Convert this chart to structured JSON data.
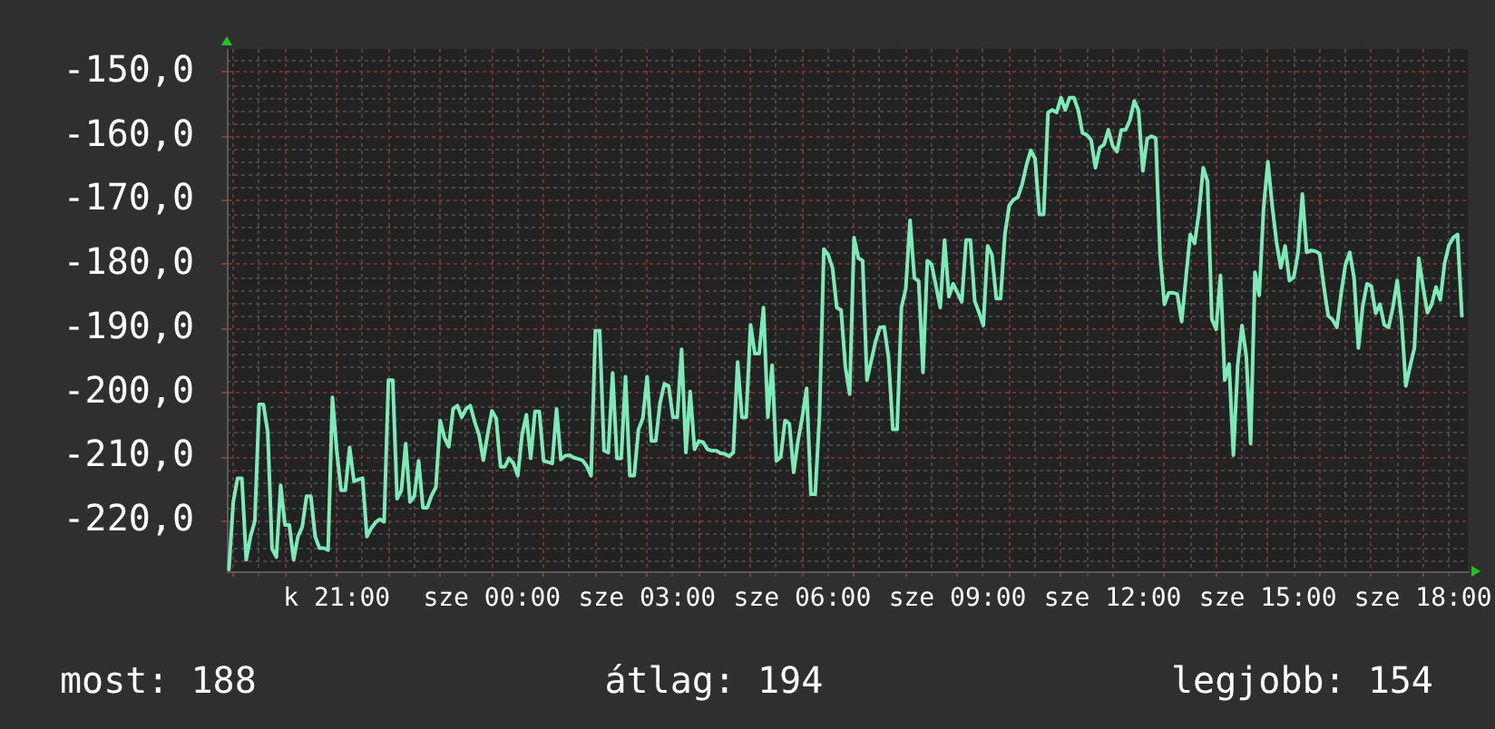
{
  "chart_data": {
    "type": "line",
    "categories": [
      null,
      null,
      null,
      null,
      null,
      null,
      null,
      null,
      null,
      null,
      null,
      null,
      null,
      null,
      null,
      null,
      null,
      null,
      null,
      null,
      null,
      null,
      null,
      null,
      null,
      "k 21:00",
      null,
      null,
      null,
      null,
      null,
      null,
      null,
      null,
      null,
      null,
      null,
      null,
      null,
      null,
      null,
      null,
      null,
      null,
      null,
      null,
      null,
      null,
      null,
      null,
      null,
      null,
      null,
      null,
      null,
      null,
      null,
      null,
      null,
      null,
      null,
      "sze 00:00",
      null,
      null,
      null,
      null,
      null,
      null,
      null,
      null,
      null,
      null,
      null,
      null,
      null,
      null,
      null,
      null,
      null,
      null,
      null,
      null,
      null,
      null,
      null,
      null,
      null,
      null,
      null,
      null,
      null,
      null,
      null,
      null,
      null,
      null,
      null,
      "sze 03:00",
      null,
      null,
      null,
      null,
      null,
      null,
      null,
      null,
      null,
      null,
      null,
      null,
      null,
      null,
      null,
      null,
      null,
      null,
      null,
      null,
      null,
      null,
      null,
      null,
      null,
      null,
      null,
      null,
      null,
      null,
      null,
      null,
      null,
      null,
      null,
      "sze 06:00",
      null,
      null,
      null,
      null,
      null,
      null,
      null,
      null,
      null,
      null,
      null,
      null,
      null,
      null,
      null,
      null,
      null,
      null,
      null,
      null,
      null,
      null,
      null,
      null,
      null,
      null,
      null,
      null,
      null,
      null,
      null,
      null,
      null,
      null,
      null,
      "sze 09:00",
      null,
      null,
      null,
      null,
      null,
      null,
      null,
      null,
      null,
      null,
      null,
      null,
      null,
      null,
      null,
      null,
      null,
      null,
      null,
      null,
      null,
      null,
      null,
      null,
      null,
      null,
      null,
      null,
      null,
      null,
      null,
      null,
      null,
      null,
      null,
      "sze 12:00",
      null,
      null,
      null,
      null,
      null,
      null,
      null,
      null,
      null,
      null,
      null,
      null,
      null,
      null,
      null,
      null,
      null,
      null,
      null,
      null,
      null,
      null,
      null,
      null,
      null,
      null,
      null,
      null,
      null,
      null,
      null,
      null,
      null,
      null,
      null,
      "sze 15:00",
      null,
      null,
      null,
      null,
      null,
      null,
      null,
      null,
      null,
      null,
      null,
      null,
      null,
      null,
      null,
      null,
      null,
      null,
      null,
      null,
      null,
      null,
      null,
      null,
      null,
      null,
      null,
      null,
      null,
      null,
      null,
      null,
      null,
      null,
      null,
      "sze 18:00",
      null,
      null,
      null,
      null,
      null,
      null,
      null,
      null,
      null,
      null
    ],
    "values": [
      -227.5,
      -217.0,
      -213.3,
      -213.3,
      -226.0,
      -222.4,
      -220.0,
      -201.8,
      -201.8,
      -206.1,
      -224.3,
      -225.6,
      -214.4,
      -220.6,
      -220.6,
      -226.0,
      -222.4,
      -220.9,
      -216.1,
      -216.1,
      -222.4,
      -224.2,
      -224.2,
      -224.5,
      -200.7,
      -209.0,
      -215.2,
      -215.2,
      -208.5,
      -213.8,
      -213.5,
      -213.3,
      -222.4,
      -221.1,
      -220.2,
      -219.7,
      -220.1,
      -198.0,
      -198.0,
      -216.5,
      -215.2,
      -207.9,
      -217.0,
      -216.1,
      -210.6,
      -217.9,
      -217.9,
      -216.0,
      -214.7,
      -204.3,
      -207.0,
      -208.4,
      -202.5,
      -202.0,
      -203.8,
      -202.5,
      -202.0,
      -204.5,
      -206.5,
      -210.5,
      -206.5,
      -202.8,
      -204.0,
      -211.5,
      -211.5,
      -210.2,
      -211.0,
      -212.9,
      -206.5,
      -203.4,
      -210.2,
      -202.9,
      -202.9,
      -210.6,
      -210.8,
      -211.0,
      -202.5,
      -210.4,
      -209.8,
      -209.7,
      -210.1,
      -210.3,
      -210.5,
      -211.4,
      -212.9,
      -190.3,
      -190.3,
      -209.0,
      -209.3,
      -196.9,
      -210.2,
      -210.2,
      -197.5,
      -212.9,
      -212.9,
      -205.7,
      -204.0,
      -197.5,
      -207.5,
      -207.5,
      -201.6,
      -198.6,
      -198.9,
      -203.8,
      -203.8,
      -193.2,
      -209.3,
      -199.8,
      -208.8,
      -207.5,
      -207.7,
      -208.8,
      -209.0,
      -209.0,
      -209.4,
      -209.5,
      -209.9,
      -209.3,
      -195.2,
      -203.8,
      -203.8,
      -189.4,
      -193.9,
      -193.9,
      -186.7,
      -203.8,
      -195.7,
      -210.6,
      -210.0,
      -204.3,
      -204.8,
      -212.4,
      -207.5,
      -203.8,
      -199.3,
      -215.8,
      -215.8,
      -203.4,
      -177.6,
      -178.5,
      -180.5,
      -186.7,
      -187.1,
      -196.0,
      -200.2,
      -175.8,
      -179.0,
      -179.4,
      -198.0,
      -195.0,
      -192.0,
      -189.8,
      -189.7,
      -194.5,
      -205.7,
      -205.7,
      -186.7,
      -183.8,
      -173.1,
      -182.1,
      -182.6,
      -196.8,
      -179.4,
      -180.0,
      -183.3,
      -186.7,
      -176.2,
      -185.0,
      -183.0,
      -184.4,
      -185.8,
      -176.2,
      -176.2,
      -185.7,
      -187.5,
      -189.5,
      -177.1,
      -178.5,
      -185.3,
      -185.3,
      -175.3,
      -170.8,
      -169.9,
      -169.5,
      -167.5,
      -164.5,
      -162.2,
      -163.5,
      -172.2,
      -172.2,
      -156.3,
      -155.9,
      -156.3,
      -154.0,
      -155.9,
      -154.0,
      -154.0,
      -155.9,
      -159.5,
      -159.8,
      -160.6,
      -164.9,
      -161.8,
      -161.3,
      -159.0,
      -161.5,
      -162.4,
      -159.0,
      -159.0,
      -157.5,
      -154.5,
      -156.0,
      -165.4,
      -160.4,
      -160.0,
      -160.3,
      -178.5,
      -186.2,
      -184.4,
      -184.4,
      -184.6,
      -188.9,
      -182.0,
      -175.3,
      -176.7,
      -172.0,
      -164.9,
      -167.0,
      -188.5,
      -190.1,
      -181.7,
      -198.0,
      -195.5,
      -209.7,
      -195.7,
      -189.5,
      -194.3,
      -207.9,
      -181.2,
      -184.8,
      -171.3,
      -164.0,
      -170.8,
      -176.5,
      -180.5,
      -177.1,
      -182.5,
      -182.0,
      -178.2,
      -169.0,
      -178.1,
      -177.8,
      -177.9,
      -178.3,
      -183.5,
      -188.0,
      -188.6,
      -189.8,
      -184.5,
      -180.0,
      -178.1,
      -182.1,
      -193.0,
      -186.5,
      -183.0,
      -183.4,
      -187.6,
      -186.2,
      -189.4,
      -189.8,
      -186.7,
      -182.5,
      -188.5,
      -198.9,
      -195.8,
      -193.0,
      -179.0,
      -183.5,
      -187.5,
      -186.2,
      -183.5,
      -185.5,
      -179.8,
      -177.0,
      -175.8,
      -175.3,
      -188.0,
      null
    ],
    "color": "#7debb7",
    "ylim": [
      -227.8,
      -146.4
    ],
    "yticks": [
      {
        "value": -220,
        "label": "-220,0"
      },
      {
        "value": -210,
        "label": "-210,0"
      },
      {
        "value": -200,
        "label": "-200,0"
      },
      {
        "value": -190,
        "label": "-190,0"
      },
      {
        "value": -180,
        "label": "-180,0"
      },
      {
        "value": -170,
        "label": "-170,0"
      },
      {
        "value": -160,
        "label": "-160,0"
      },
      {
        "value": -150,
        "label": "-150,0"
      }
    ],
    "grid": true,
    "annotations": [
      "most: 188",
      "átlag: 194",
      "legjobb: 154"
    ]
  }
}
